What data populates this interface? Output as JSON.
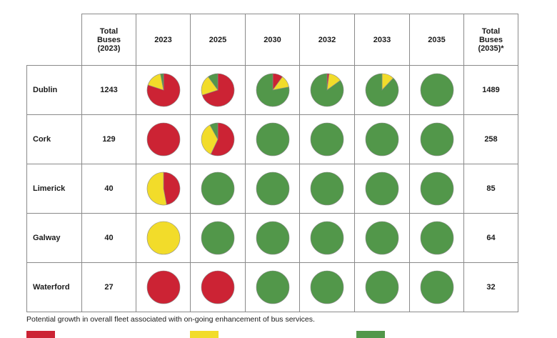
{
  "chart_data": {
    "type": "table",
    "title": "",
    "header": {
      "total_2023": "Total\nBuses\n(2023)",
      "years": [
        "2023",
        "2025",
        "2030",
        "2032",
        "2033",
        "2035"
      ],
      "total_2035": "Total\nBuses\n(2035)*"
    },
    "series_colors": {
      "red": "#cc2334",
      "yellow": "#f2dc2a",
      "green": "#52974a"
    },
    "rows": [
      {
        "city": "Dublin",
        "total_2023": "1243",
        "total_2035": "1489",
        "pies": [
          {
            "red": 0.8,
            "yellow": 0.17,
            "green": 0.03
          },
          {
            "red": 0.7,
            "yellow": 0.2,
            "green": 0.1
          },
          {
            "red": 0.1,
            "yellow": 0.12,
            "green": 0.78
          },
          {
            "red": 0.02,
            "yellow": 0.13,
            "green": 0.85
          },
          {
            "red": 0.0,
            "yellow": 0.12,
            "green": 0.88
          },
          {
            "red": 0.0,
            "yellow": 0.0,
            "green": 1.0
          }
        ]
      },
      {
        "city": "Cork",
        "total_2023": "129",
        "total_2035": "258",
        "pies": [
          {
            "red": 1.0,
            "yellow": 0.0,
            "green": 0.0
          },
          {
            "red": 0.57,
            "yellow": 0.35,
            "green": 0.08
          },
          {
            "red": 0.0,
            "yellow": 0.0,
            "green": 1.0
          },
          {
            "red": 0.0,
            "yellow": 0.0,
            "green": 1.0
          },
          {
            "red": 0.0,
            "yellow": 0.0,
            "green": 1.0
          },
          {
            "red": 0.0,
            "yellow": 0.0,
            "green": 1.0
          }
        ]
      },
      {
        "city": "Limerick",
        "total_2023": "40",
        "total_2035": "85",
        "pies": [
          {
            "red": 0.47,
            "yellow": 0.53,
            "green": 0.0
          },
          {
            "red": 0.0,
            "yellow": 0.0,
            "green": 1.0
          },
          {
            "red": 0.0,
            "yellow": 0.0,
            "green": 1.0
          },
          {
            "red": 0.0,
            "yellow": 0.0,
            "green": 1.0
          },
          {
            "red": 0.0,
            "yellow": 0.0,
            "green": 1.0
          },
          {
            "red": 0.0,
            "yellow": 0.0,
            "green": 1.0
          }
        ]
      },
      {
        "city": "Galway",
        "total_2023": "40",
        "total_2035": "64",
        "pies": [
          {
            "red": 0.0,
            "yellow": 1.0,
            "green": 0.0
          },
          {
            "red": 0.0,
            "yellow": 0.0,
            "green": 1.0
          },
          {
            "red": 0.0,
            "yellow": 0.0,
            "green": 1.0
          },
          {
            "red": 0.0,
            "yellow": 0.0,
            "green": 1.0
          },
          {
            "red": 0.0,
            "yellow": 0.0,
            "green": 1.0
          },
          {
            "red": 0.0,
            "yellow": 0.0,
            "green": 1.0
          }
        ]
      },
      {
        "city": "Waterford",
        "total_2023": "27",
        "total_2035": "32",
        "pies": [
          {
            "red": 1.0,
            "yellow": 0.0,
            "green": 0.0
          },
          {
            "red": 1.0,
            "yellow": 0.0,
            "green": 0.0
          },
          {
            "red": 0.0,
            "yellow": 0.0,
            "green": 1.0
          },
          {
            "red": 0.0,
            "yellow": 0.0,
            "green": 1.0
          },
          {
            "red": 0.0,
            "yellow": 0.0,
            "green": 1.0
          },
          {
            "red": 0.0,
            "yellow": 0.0,
            "green": 1.0
          }
        ]
      }
    ],
    "footnote": "Potential growth in overall fleet associated with on-going enhancement of bus services.",
    "legend": [
      {
        "color": "#cc2334"
      },
      {
        "color": "#f2dc2a"
      },
      {
        "color": "#52974a"
      }
    ]
  }
}
